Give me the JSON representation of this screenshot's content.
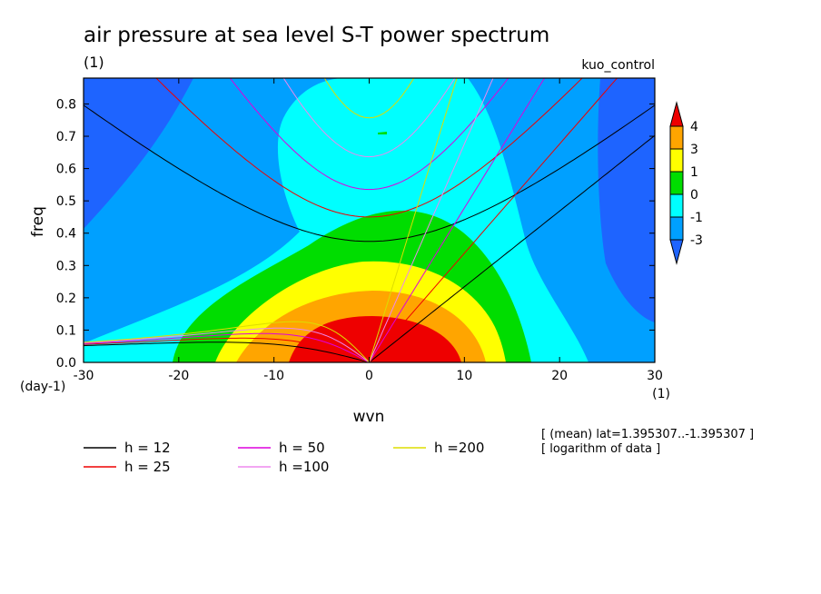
{
  "chart_data": {
    "type": "heatmap",
    "title": "air pressure at sea level S-T power spectrum",
    "units_label": "(1)",
    "experiment": "kuo_control",
    "xlabel": "wvn",
    "xunits": "(1)",
    "ylabel": "freq",
    "yunits": "(day-1)",
    "xlim": [
      -30,
      30
    ],
    "ylim": [
      0,
      0.88
    ],
    "xticks": [
      "-30",
      "-20",
      "-10",
      "0",
      "10",
      "20",
      "30"
    ],
    "yticks": [
      "0.0",
      "0.1",
      "0.2",
      "0.3",
      "0.4",
      "0.5",
      "0.6",
      "0.7",
      "0.8"
    ],
    "colorbar": {
      "labels": [
        "4",
        "3",
        "1",
        "0",
        "-1",
        "-3"
      ],
      "colors": [
        "#ee0000",
        "#ffa500",
        "#ffff00",
        "#00dd00",
        "#00ffff",
        "#00a0ff",
        "#1e64ff"
      ]
    },
    "annotations": [
      "[ (mean) lat=1.395307..-1.395307 ]",
      "[ logarithm of data ]"
    ],
    "dispersion_curves": [
      {
        "name": "h = 12",
        "h": 12,
        "color": "#000000"
      },
      {
        "name": "h = 25",
        "h": 25,
        "color": "#ee0000"
      },
      {
        "name": "h = 50",
        "h": 50,
        "color": "#dd00dd"
      },
      {
        "name": "h =100",
        "h": 100,
        "color": "#ee88ee"
      },
      {
        "name": "h =200",
        "h": 200,
        "color": "#dddd00"
      }
    ],
    "filled_regions": [
      {
        "level": "below -3",
        "color": "#1e64ff"
      },
      {
        "level": "-3 to -1",
        "color": "#00a0ff"
      },
      {
        "level": "-1 to 0",
        "color": "#00ffff"
      },
      {
        "level": "0 to 1",
        "color": "#00dd00"
      },
      {
        "level": "1 to 3",
        "color": "#ffff00"
      },
      {
        "level": "3 to 4",
        "color": "#ffa500"
      },
      {
        "level": "above 4",
        "color": "#ee0000"
      }
    ]
  }
}
